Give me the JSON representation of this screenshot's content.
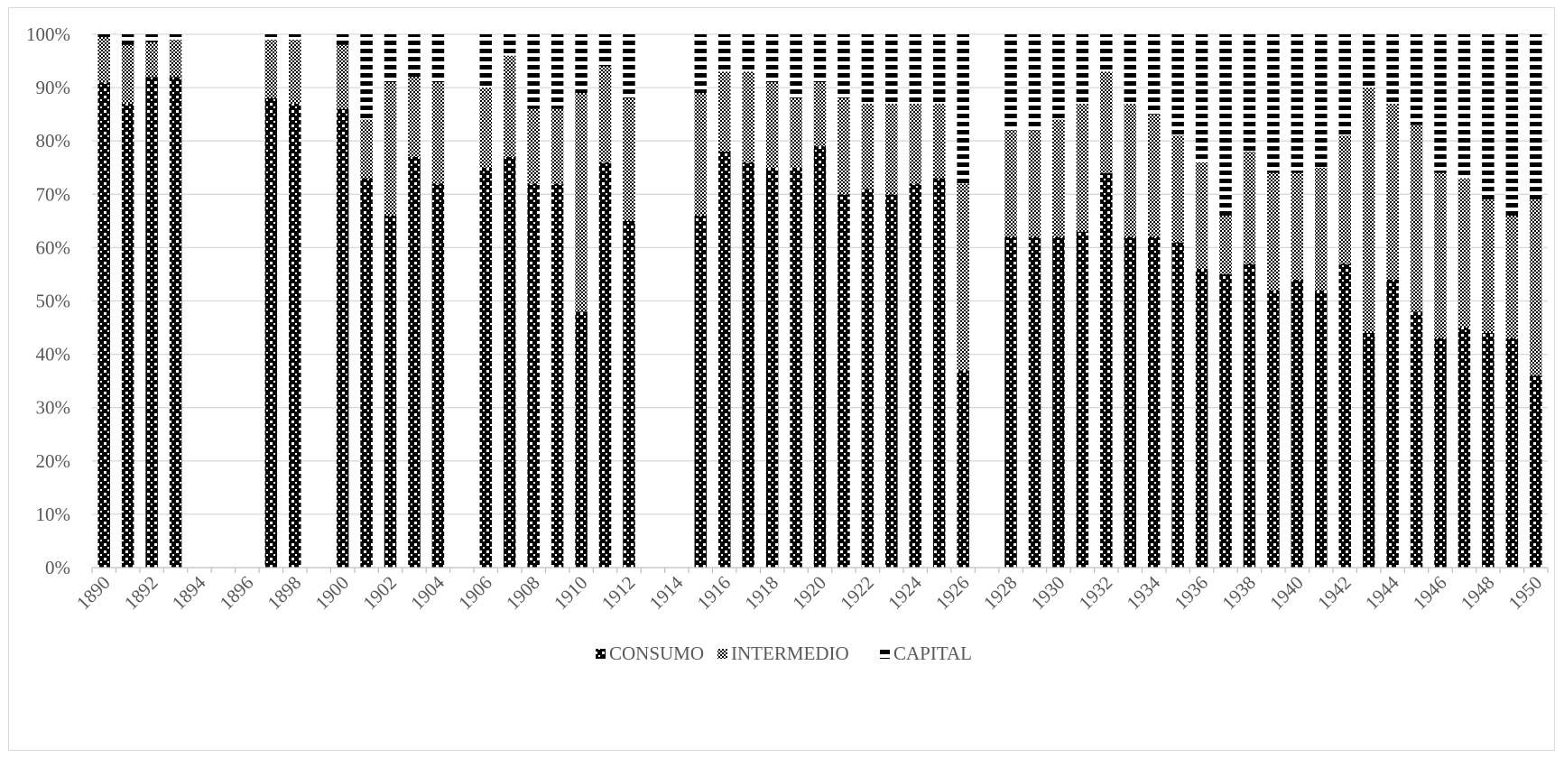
{
  "chart_data": {
    "type": "bar",
    "stacked": true,
    "percent_stacked": true,
    "title": "",
    "xlabel": "",
    "ylabel": "",
    "ylim": [
      0,
      100
    ],
    "yticks": [
      "0%",
      "10%",
      "20%",
      "30%",
      "40%",
      "50%",
      "60%",
      "70%",
      "80%",
      "90%",
      "100%"
    ],
    "xtick_labels": [
      "1890",
      "1892",
      "1894",
      "1896",
      "1898",
      "1900",
      "1902",
      "1904",
      "1906",
      "1908",
      "1910",
      "1912",
      "1914",
      "1916",
      "1918",
      "1920",
      "1922",
      "1924",
      "1926",
      "1928",
      "1930",
      "1932",
      "1934",
      "1936",
      "1938",
      "1940",
      "1942",
      "1944",
      "1946",
      "1948",
      "1950"
    ],
    "grid": "horizontal",
    "legend_position": "bottom",
    "categories": [
      "1890",
      "1891",
      "1892",
      "1893",
      "1894",
      "1895",
      "1896",
      "1897",
      "1898",
      "1899",
      "1900",
      "1901",
      "1902",
      "1903",
      "1904",
      "1905",
      "1906",
      "1907",
      "1908",
      "1909",
      "1910",
      "1911",
      "1912",
      "1913",
      "1914",
      "1915",
      "1916",
      "1917",
      "1918",
      "1919",
      "1920",
      "1921",
      "1922",
      "1923",
      "1924",
      "1925",
      "1926",
      "1927",
      "1928",
      "1929",
      "1930",
      "1931",
      "1932",
      "1933",
      "1934",
      "1935",
      "1936",
      "1937",
      "1938",
      "1939",
      "1940",
      "1941",
      "1942",
      "1943",
      "1944",
      "1945",
      "1946",
      "1947",
      "1948",
      "1949",
      "1950"
    ],
    "series": [
      {
        "name": "CONSUMO",
        "pattern": "checker",
        "values": [
          91,
          87,
          92,
          92,
          null,
          null,
          null,
          88,
          87,
          null,
          86,
          73,
          66,
          77,
          72,
          null,
          75,
          77,
          72,
          72,
          48,
          76,
          65,
          null,
          null,
          66,
          78,
          76,
          75,
          75,
          79,
          70,
          71,
          70,
          72,
          73,
          37,
          null,
          62,
          62,
          62,
          63,
          74,
          62,
          62,
          61,
          56,
          55,
          57,
          52,
          54,
          52,
          57,
          44,
          54,
          48,
          43,
          45,
          44,
          43,
          36
        ]
      },
      {
        "name": "INTERMEDIO",
        "pattern": "dense-dots",
        "values": [
          8.5,
          11,
          6.5,
          7,
          null,
          null,
          null,
          11,
          12,
          null,
          12,
          11,
          25,
          15,
          19,
          null,
          15,
          19,
          14,
          14,
          41,
          18,
          23,
          null,
          null,
          23,
          15,
          17,
          16,
          13,
          12,
          18,
          16,
          17,
          15,
          14,
          35,
          null,
          20,
          20,
          22,
          24,
          19,
          25,
          23,
          20,
          20,
          11,
          21,
          22,
          20,
          23,
          24,
          46,
          33,
          35,
          31,
          28,
          25,
          23,
          33
        ]
      },
      {
        "name": "CAPITAL",
        "pattern": "horizontal-stripes",
        "values": [
          0.5,
          2,
          1.5,
          1,
          null,
          null,
          null,
          1,
          1,
          null,
          2,
          16,
          9,
          8,
          9,
          null,
          10,
          4,
          14,
          14,
          11,
          6,
          12,
          null,
          null,
          11,
          7,
          7,
          9,
          12,
          9,
          12,
          13,
          13,
          13,
          13,
          28,
          null,
          18,
          18,
          16,
          13,
          7,
          13,
          15,
          19,
          24,
          34,
          22,
          26,
          26,
          25,
          19,
          10,
          13,
          17,
          26,
          27,
          31,
          34,
          31
        ]
      }
    ],
    "colors": {
      "bar_fill": "#000000",
      "pattern": "#ffffff",
      "grid": "#d9d9d9",
      "axis": "#bfbfbf",
      "label": "#595959"
    }
  }
}
